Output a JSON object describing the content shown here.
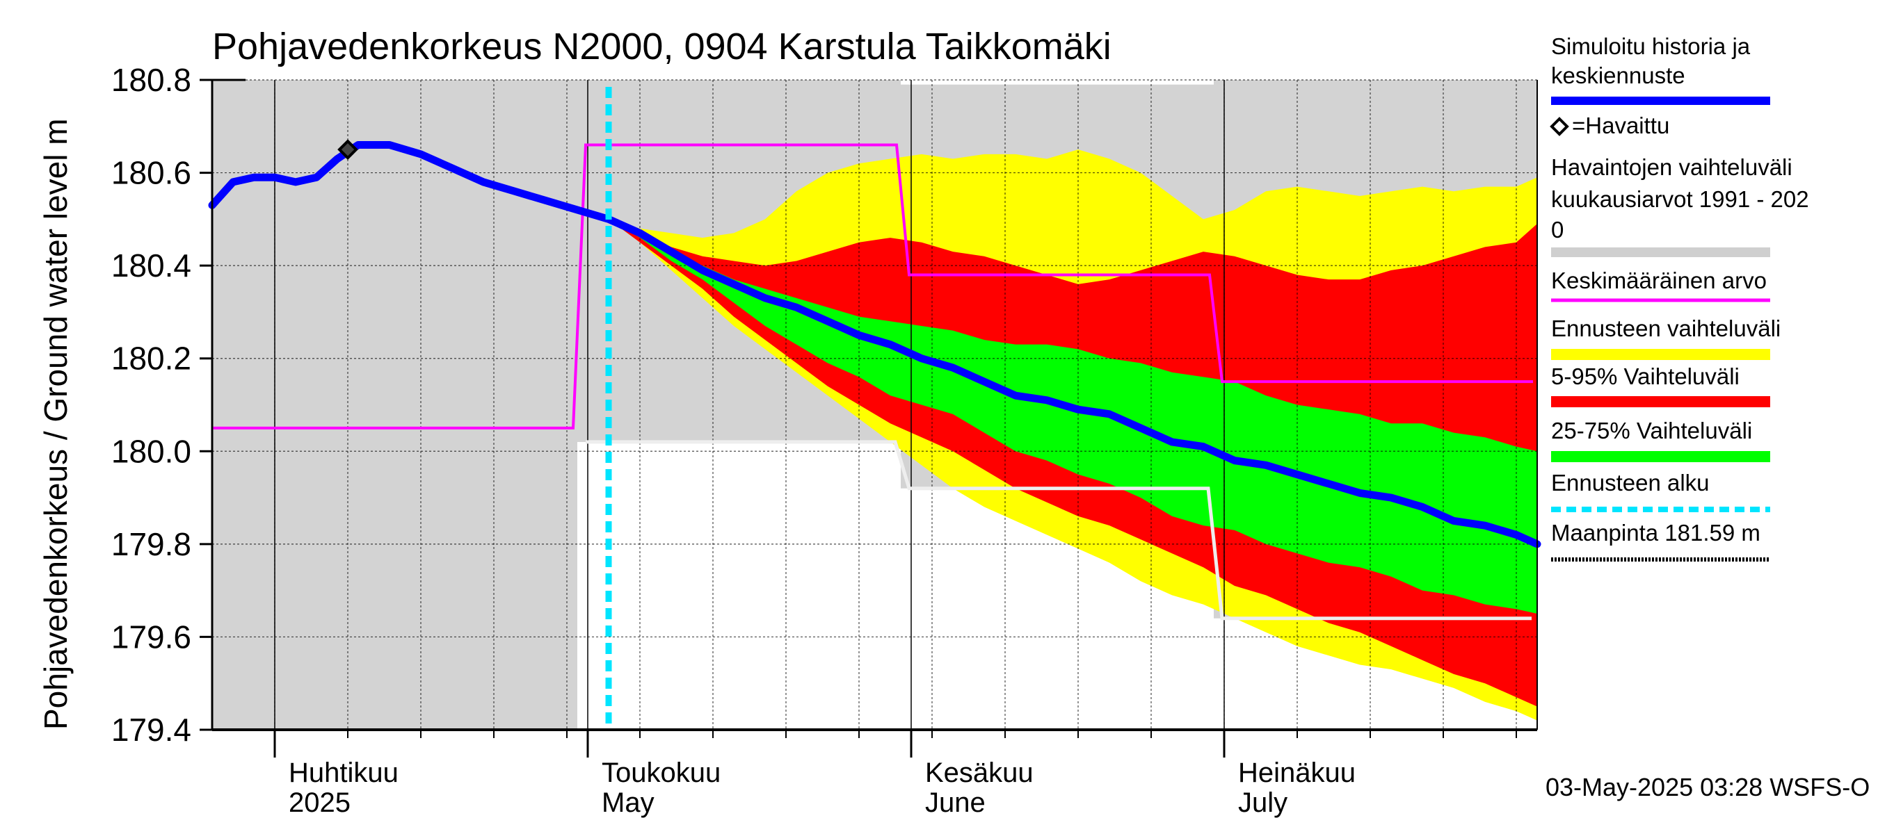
{
  "chart_data": {
    "type": "area",
    "title": "Pohjavedenkorkeus N2000, 0904 Karstula Taikkomäki",
    "ylabel": "Pohjavedenkorkeus / Ground water level   m",
    "ylim": [
      179.4,
      180.8
    ],
    "yticks": [
      "180.8",
      "180.6",
      "180.4",
      "180.2",
      "180.0",
      "179.8",
      "179.6",
      "179.4"
    ],
    "x_start": "2025-03-26",
    "x_end": "2025-07-31",
    "months": [
      {
        "fi": "Huhtikuu",
        "en": "2025",
        "date": "2025-04-01"
      },
      {
        "fi": "Toukokuu",
        "en": "May",
        "date": "2025-05-01"
      },
      {
        "fi": "Kesäkuu",
        "en": "June",
        "date": "2025-06-01"
      },
      {
        "fi": "Heinäkuu",
        "en": "July",
        "date": "2025-07-01"
      }
    ],
    "forecast_start": "2025-05-03",
    "observed_point": {
      "date": "2025-04-08",
      "value": 180.65
    },
    "history_band": [
      {
        "x0": "2025-03-26",
        "x1": "2025-04-30",
        "min": 179.4,
        "max": 180.8
      },
      {
        "x0": "2025-04-30",
        "x1": "2025-05-31",
        "min": 180.02,
        "max": 180.8
      },
      {
        "x0": "2025-05-31",
        "x1": "2025-06-30",
        "min": 179.92,
        "max": 180.79
      },
      {
        "x0": "2025-06-30",
        "x1": "2025-07-31",
        "min": 179.64,
        "max": 180.8
      }
    ],
    "mean_value": [
      {
        "x0": "2025-03-26",
        "x1": "2025-04-30",
        "value": 180.05
      },
      {
        "x0": "2025-04-30",
        "x1": "2025-05-31",
        "value": 180.66
      },
      {
        "x0": "2025-05-31",
        "x1": "2025-06-30",
        "value": 180.38
      },
      {
        "x0": "2025-06-30",
        "x1": "2025-07-31",
        "value": 180.15
      }
    ],
    "simulated": {
      "x": [
        "2025-03-26",
        "2025-03-28",
        "2025-03-30",
        "2025-04-01",
        "2025-04-03",
        "2025-04-05",
        "2025-04-07",
        "2025-04-09",
        "2025-04-12",
        "2025-04-15",
        "2025-04-18",
        "2025-04-21",
        "2025-04-24",
        "2025-04-27",
        "2025-04-30",
        "2025-05-03",
        "2025-05-06",
        "2025-05-09",
        "2025-05-12",
        "2025-05-15",
        "2025-05-18",
        "2025-05-21",
        "2025-05-24",
        "2025-05-27",
        "2025-05-30",
        "2025-06-02",
        "2025-06-05",
        "2025-06-08",
        "2025-06-11",
        "2025-06-14",
        "2025-06-17",
        "2025-06-20",
        "2025-06-23",
        "2025-06-26",
        "2025-06-29",
        "2025-07-02",
        "2025-07-05",
        "2025-07-08",
        "2025-07-11",
        "2025-07-14",
        "2025-07-17",
        "2025-07-20",
        "2025-07-23",
        "2025-07-26",
        "2025-07-29",
        "2025-07-31"
      ],
      "values": [
        180.53,
        180.58,
        180.59,
        180.59,
        180.58,
        180.59,
        180.63,
        180.66,
        180.66,
        180.64,
        180.61,
        180.58,
        180.56,
        180.54,
        180.52,
        180.5,
        180.47,
        180.43,
        180.39,
        180.36,
        180.33,
        180.31,
        180.28,
        180.25,
        180.23,
        180.2,
        180.18,
        180.15,
        180.12,
        180.11,
        180.09,
        180.08,
        180.05,
        180.02,
        180.01,
        179.98,
        179.97,
        179.95,
        179.93,
        179.91,
        179.9,
        179.88,
        179.85,
        179.84,
        179.82,
        179.8
      ]
    },
    "forecast": {
      "x": [
        "2025-05-03",
        "2025-05-06",
        "2025-05-09",
        "2025-05-12",
        "2025-05-15",
        "2025-05-18",
        "2025-05-21",
        "2025-05-24",
        "2025-05-27",
        "2025-05-30",
        "2025-06-02",
        "2025-06-05",
        "2025-06-08",
        "2025-06-11",
        "2025-06-14",
        "2025-06-17",
        "2025-06-20",
        "2025-06-23",
        "2025-06-26",
        "2025-06-29",
        "2025-07-02",
        "2025-07-05",
        "2025-07-08",
        "2025-07-11",
        "2025-07-14",
        "2025-07-17",
        "2025-07-20",
        "2025-07-23",
        "2025-07-26",
        "2025-07-29",
        "2025-07-31"
      ],
      "range_max": [
        180.5,
        180.48,
        180.47,
        180.46,
        180.47,
        180.5,
        180.56,
        180.6,
        180.62,
        180.63,
        180.64,
        180.63,
        180.64,
        180.64,
        180.63,
        180.65,
        180.63,
        180.6,
        180.55,
        180.5,
        180.52,
        180.56,
        180.57,
        180.56,
        180.55,
        180.56,
        180.57,
        180.56,
        180.57,
        180.57,
        180.59
      ],
      "p95": [
        180.5,
        180.47,
        180.44,
        180.42,
        180.41,
        180.4,
        180.41,
        180.43,
        180.45,
        180.46,
        180.45,
        180.43,
        180.42,
        180.4,
        180.38,
        180.36,
        180.37,
        180.39,
        180.41,
        180.43,
        180.42,
        180.4,
        180.38,
        180.37,
        180.37,
        180.39,
        180.4,
        180.42,
        180.44,
        180.45,
        180.49
      ],
      "p75": [
        180.5,
        180.47,
        180.43,
        180.4,
        180.37,
        180.35,
        180.33,
        180.31,
        180.29,
        180.28,
        180.27,
        180.26,
        180.24,
        180.23,
        180.23,
        180.22,
        180.2,
        180.19,
        180.17,
        180.16,
        180.15,
        180.12,
        180.1,
        180.09,
        180.08,
        180.06,
        180.06,
        180.04,
        180.03,
        180.01,
        180.0
      ],
      "p25": [
        180.5,
        180.46,
        180.41,
        180.37,
        180.32,
        180.27,
        180.23,
        180.19,
        180.16,
        180.12,
        180.1,
        180.08,
        180.04,
        180.0,
        179.98,
        179.95,
        179.93,
        179.9,
        179.86,
        179.84,
        179.83,
        179.8,
        179.78,
        179.76,
        179.75,
        179.73,
        179.7,
        179.69,
        179.67,
        179.66,
        179.65
      ],
      "p05": [
        180.5,
        180.45,
        180.4,
        180.35,
        180.29,
        180.24,
        180.19,
        180.14,
        180.1,
        180.06,
        180.03,
        180.0,
        179.96,
        179.92,
        179.89,
        179.86,
        179.84,
        179.81,
        179.78,
        179.75,
        179.71,
        179.69,
        179.66,
        179.63,
        179.61,
        179.58,
        179.55,
        179.52,
        179.5,
        179.47,
        179.45
      ],
      "range_min": [
        180.5,
        180.45,
        180.39,
        180.33,
        180.27,
        180.22,
        180.17,
        180.12,
        180.07,
        180.02,
        179.97,
        179.92,
        179.88,
        179.85,
        179.82,
        179.79,
        179.76,
        179.72,
        179.69,
        179.67,
        179.64,
        179.61,
        179.58,
        179.56,
        179.54,
        179.53,
        179.51,
        179.49,
        179.46,
        179.44,
        179.42
      ]
    },
    "legend": [
      {
        "label": "Simuloitu historia ja keskiennuste",
        "color": "#0000ff"
      },
      {
        "label": "◇=Havaittu",
        "color": "#000000"
      },
      {
        "label": "Havaintojen vaihteluväli kuukausiarvot 1991 - 2020",
        "color": "#d3d3d3"
      },
      {
        "label": "Keskimääräinen arvo",
        "color": "#ff00ff"
      },
      {
        "label": "Ennusteen vaihteluväli",
        "color": "#ffff00"
      },
      {
        "label": "5-95% Vaihteluväli",
        "color": "#ff0000"
      },
      {
        "label": "25-75% Vaihteluväli",
        "color": "#00ff00"
      },
      {
        "label": "Ennusteen alku",
        "color": "#00ffff"
      },
      {
        "label": "Maanpinta 181.59 m",
        "color": "#000000"
      }
    ],
    "legend_lines": [
      [
        "Simuloitu historia ja",
        "keskiennuste"
      ],
      [
        "=Havaittu"
      ],
      [
        "Havaintojen vaihteluväli",
        " kuukausiarvot 1991 - 202",
        "0"
      ],
      [
        "Keskimääräinen arvo"
      ],
      [
        "Ennusteen vaihteluväli"
      ],
      [
        "5-95% Vaihteluväli"
      ],
      [
        "25-75% Vaihteluväli"
      ],
      [
        "Ennusteen alku"
      ],
      [
        "Maanpinta 181.59 m"
      ]
    ],
    "footer": "03-May-2025 03:28 WSFS-O"
  }
}
